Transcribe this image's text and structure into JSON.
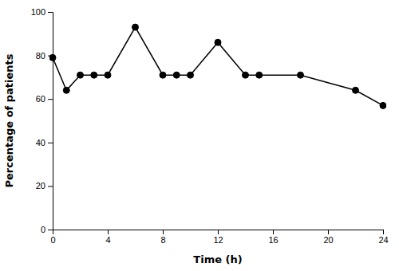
{
  "chart_data": {
    "type": "line",
    "x": [
      0,
      1,
      2,
      3,
      4,
      6,
      8,
      9,
      10,
      12,
      14,
      15,
      18,
      22,
      24
    ],
    "values": [
      79,
      64,
      71,
      71,
      71,
      93,
      71,
      71,
      71,
      86,
      71,
      71,
      71,
      64,
      57
    ],
    "xlabel": "Time (h)",
    "ylabel": "Percentage of patients",
    "xlim": [
      0,
      24
    ],
    "ylim": [
      0,
      100
    ],
    "xticks": [
      0,
      4,
      8,
      12,
      16,
      20,
      24
    ],
    "yticks": [
      0,
      20,
      40,
      60,
      80,
      100
    ],
    "color": "#000000",
    "marker": "circle"
  }
}
